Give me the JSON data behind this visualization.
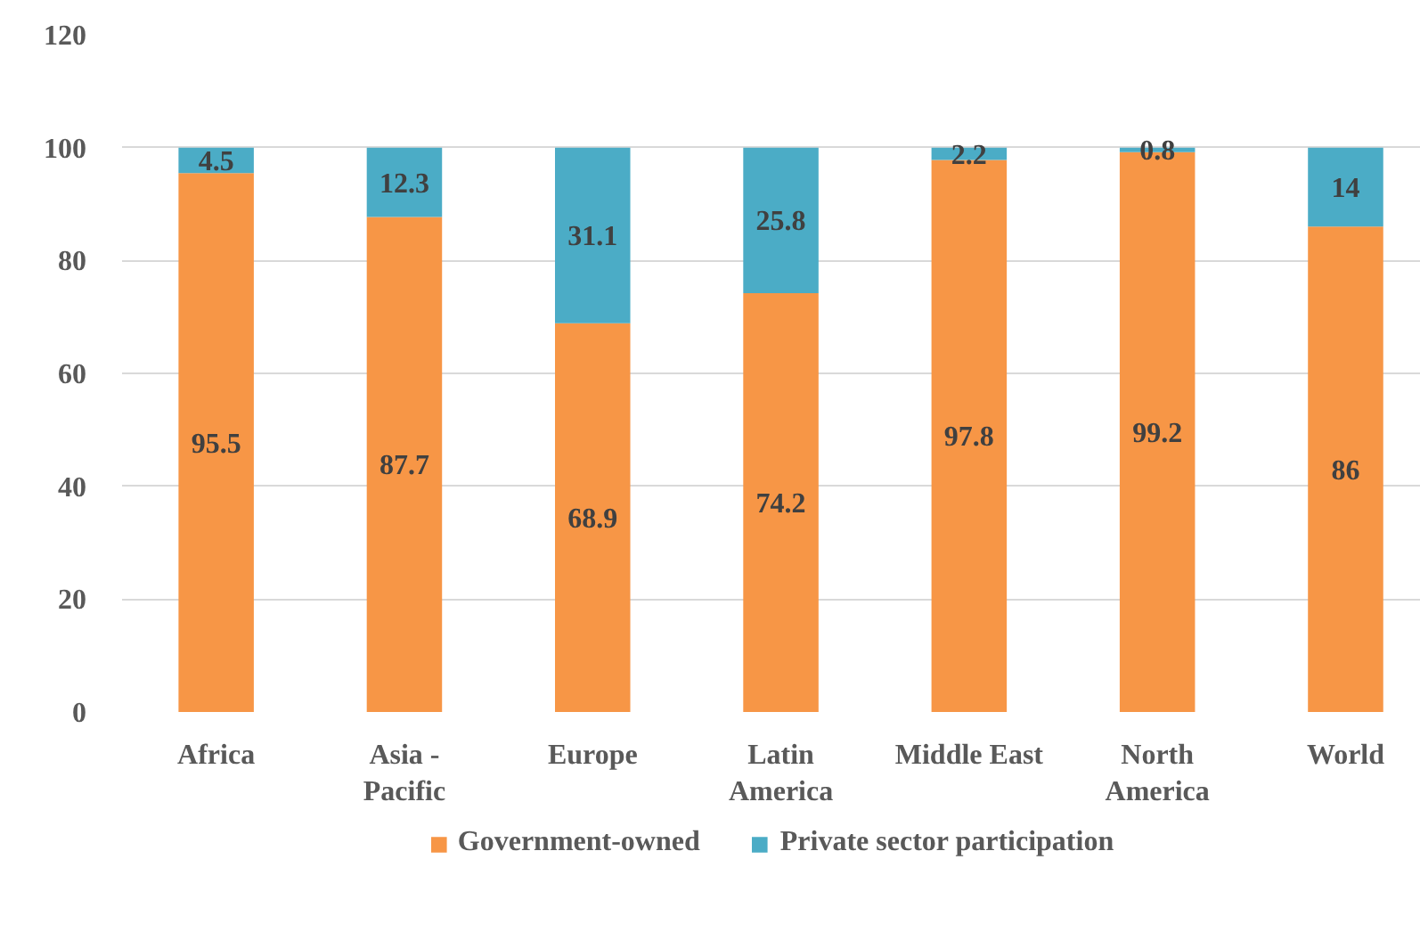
{
  "chart_data": {
    "type": "bar",
    "stacked": true,
    "categories": [
      "Africa",
      "Asia - Pacific",
      "Europe",
      "Latin America",
      "Middle East",
      "North America",
      "World"
    ],
    "series": [
      {
        "name": "Government-owned",
        "color": "#f79646",
        "values": [
          95.5,
          87.7,
          68.9,
          74.2,
          97.8,
          99.2,
          86
        ]
      },
      {
        "name": "Private sector participation",
        "color": "#4bacc6",
        "values": [
          4.5,
          12.3,
          31.1,
          25.8,
          2.2,
          0.8,
          14
        ]
      }
    ],
    "ylim": [
      0,
      120
    ],
    "yticks": [
      0,
      20,
      40,
      60,
      80,
      100,
      120
    ],
    "grid": "y",
    "legend": "bottom",
    "data_labels": true
  }
}
